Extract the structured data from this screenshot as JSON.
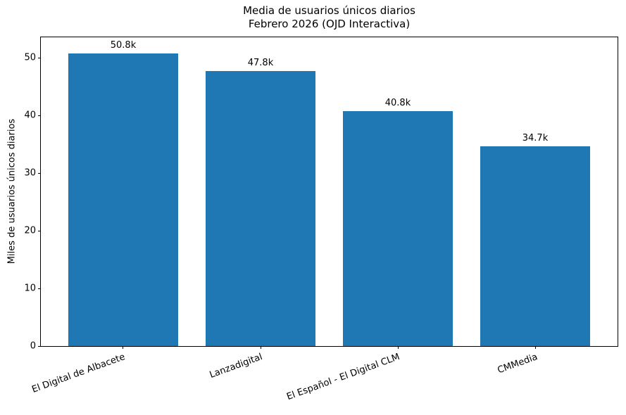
{
  "figure": {
    "background": "#ffffff"
  },
  "chart_data": {
    "type": "bar",
    "title": "Media de usuarios únicos diarios",
    "subtitle": "Febrero 2026 (OJD Interactiva)",
    "ylabel": "Miles de usuarios únicos diarios",
    "categories": [
      "El Digital de Albacete",
      "Lanzadigital",
      "El Español - El Digital CLM",
      "CMMedia"
    ],
    "values": [
      50.8,
      47.8,
      40.8,
      34.7
    ],
    "bar_labels": [
      "50.8k",
      "47.8k",
      "40.8k",
      "34.7k"
    ],
    "yticks": [
      0,
      10,
      20,
      30,
      40,
      50
    ],
    "ylim": [
      0,
      53.6
    ],
    "bar_color": "#1f77b4",
    "text_color": "#000000",
    "spine_color": "#000000",
    "xtick_rotation_deg": 20,
    "grid": false,
    "legend": "none"
  }
}
